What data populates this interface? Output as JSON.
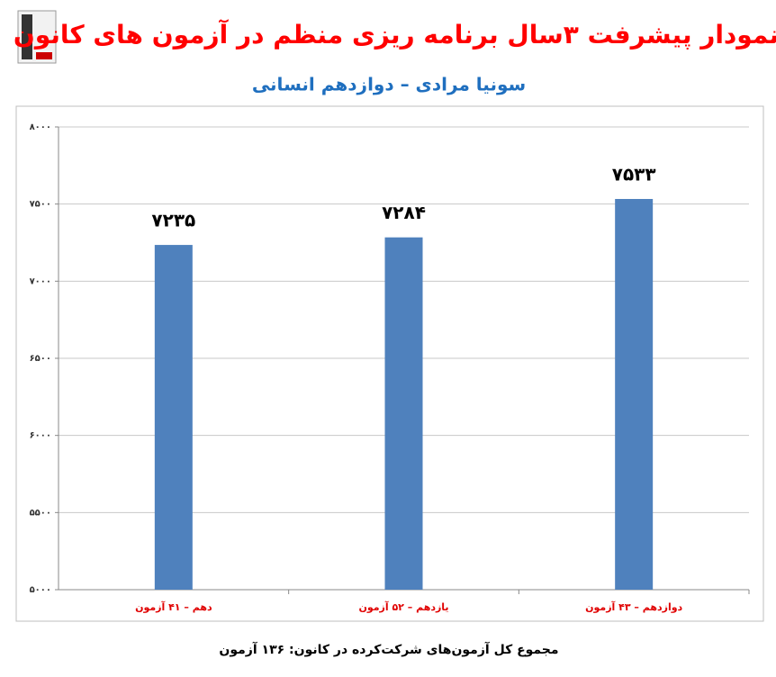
{
  "chart_data": {
    "type": "bar",
    "title": "نمودار پیشرفت ۳سال برنامه ریزی منظم در آزمون های کانون",
    "subtitle": "سونیا مرادی – دوازدهم انسانی",
    "categories": [
      "دهم – ۴۱ آزمون",
      "یازدهم – ۵۲ آزمون",
      "دوازدهم – ۴۳ آزمون"
    ],
    "values": [
      7235,
      7284,
      7533
    ],
    "value_labels": [
      "۷۲۳۵",
      "۷۲۸۴",
      "۷۵۳۳"
    ],
    "color": "#4f81bd",
    "ylim": [
      5000,
      8000
    ],
    "yticks": [
      {
        "value": 5000,
        "label": "۵۰۰۰"
      },
      {
        "value": 5500,
        "label": "۵۵۰۰"
      },
      {
        "value": 6000,
        "label": "۶۰۰۰"
      },
      {
        "value": 6500,
        "label": "۶۵۰۰"
      },
      {
        "value": 7000,
        "label": "۷۰۰۰"
      },
      {
        "value": 7500,
        "label": "۷۵۰۰"
      },
      {
        "value": 8000,
        "label": "۸۰۰۰"
      }
    ],
    "grid": true,
    "footnote": "مجموع کل آزمون‌های شرکت‌کرده در کانون: ۱۳۶ آزمون"
  }
}
